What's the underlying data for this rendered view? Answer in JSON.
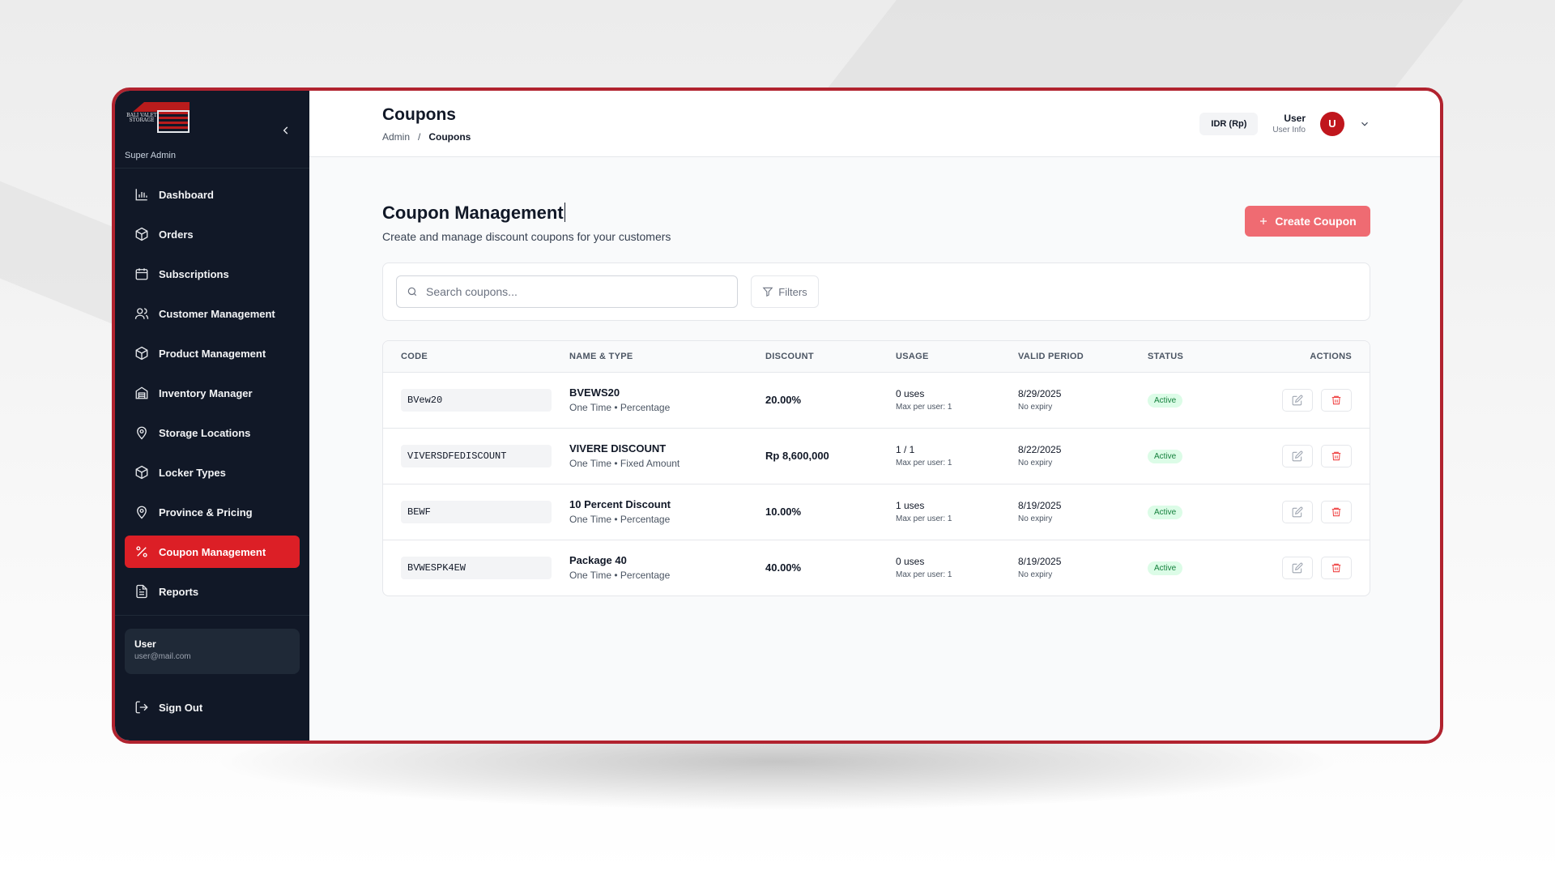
{
  "sidebar": {
    "logo_text": "BALI VALET STORAGE",
    "role": "Super Admin",
    "items": [
      {
        "label": "Dashboard",
        "icon": "bar-chart-icon",
        "active": false
      },
      {
        "label": "Orders",
        "icon": "box-icon",
        "active": false
      },
      {
        "label": "Subscriptions",
        "icon": "calendar-icon",
        "active": false
      },
      {
        "label": "Customer Management",
        "icon": "users-icon",
        "active": false
      },
      {
        "label": "Product Management",
        "icon": "box-icon",
        "active": false
      },
      {
        "label": "Inventory Manager",
        "icon": "warehouse-icon",
        "active": false
      },
      {
        "label": "Storage Locations",
        "icon": "map-pin-icon",
        "active": false
      },
      {
        "label": "Locker Types",
        "icon": "box-icon",
        "active": false
      },
      {
        "label": "Province & Pricing",
        "icon": "map-pin-icon",
        "active": false
      },
      {
        "label": "Coupon Management",
        "icon": "percent-icon",
        "active": true
      },
      {
        "label": "Reports",
        "icon": "file-text-icon",
        "active": false
      }
    ],
    "user": {
      "name": "User",
      "email": "user@mail.com"
    },
    "sign_out": "Sign Out"
  },
  "header": {
    "title": "Coupons",
    "breadcrumb": [
      "Admin",
      "/",
      "Coupons"
    ],
    "currency": "IDR (Rp)",
    "user_name": "User",
    "user_sub": "User Info",
    "avatar_initial": "U"
  },
  "main": {
    "title": "Coupon Management",
    "subtitle": "Create and manage discount coupons for your customers",
    "create_label": "Create Coupon",
    "search_placeholder": "Search coupons...",
    "filters_label": "Filters",
    "columns": [
      "CODE",
      "NAME & TYPE",
      "DISCOUNT",
      "USAGE",
      "VALID PERIOD",
      "STATUS",
      "ACTIONS"
    ],
    "rows": [
      {
        "code": "BVew20",
        "name": "BVEWS20",
        "type": "One Time • Percentage",
        "discount": "20.00%",
        "usage": "0 uses",
        "usage_sub": "Max per user: 1",
        "valid": "8/29/2025",
        "valid_sub": "No expiry",
        "status": "Active"
      },
      {
        "code": "VIVERSDFEDISCOUNT",
        "name": "VIVERE DISCOUNT",
        "type": "One Time • Fixed Amount",
        "discount": "Rp 8,600,000",
        "usage": "1 / 1",
        "usage_sub": "Max per user: 1",
        "valid": "8/22/2025",
        "valid_sub": "No expiry",
        "status": "Active"
      },
      {
        "code": "BEWF",
        "name": "10 Percent Discount",
        "type": "One Time • Percentage",
        "discount": "10.00%",
        "usage": "1 uses",
        "usage_sub": "Max per user: 1",
        "valid": "8/19/2025",
        "valid_sub": "No expiry",
        "status": "Active"
      },
      {
        "code": "BVWESPK4EW",
        "name": "Package 40",
        "type": "One Time • Percentage",
        "discount": "40.00%",
        "usage": "0 uses",
        "usage_sub": "Max per user: 1",
        "valid": "8/19/2025",
        "valid_sub": "No expiry",
        "status": "Active"
      }
    ]
  },
  "colors": {
    "accent": "#dc1f26",
    "sidebar_bg": "#111827",
    "frame_border": "#b1232f",
    "create_button": "#ef6b72",
    "active_badge_bg": "#dcfce7",
    "active_badge_text": "#15803d"
  }
}
